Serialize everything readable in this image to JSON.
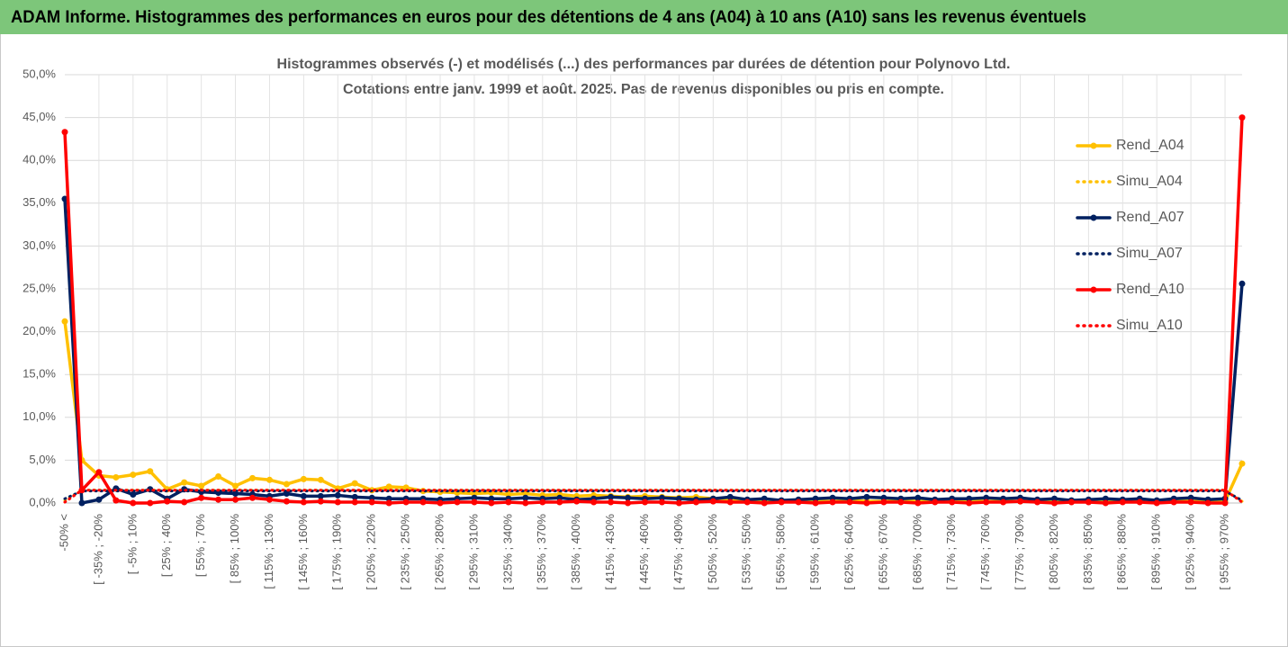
{
  "header": {
    "title": "ADAM Informe. Histogrammes des performances en euros pour des détentions de 4 ans (A04) à 10 ans (A10) sans les revenus éventuels"
  },
  "chart_data": {
    "type": "line",
    "title": "Histogrammes observés (-) et modélisés (...) des performances par durées de détention pour Polynovo Ltd.",
    "subtitle": "Cotations entre janv. 1999 et août. 2025. Pas de revenus disponibles ou pris en compte.",
    "categories": [
      "-50% <",
      null,
      "[ -35% ; -20%",
      null,
      "[ -5% ; 10%",
      null,
      "[ 25% ; 40%",
      null,
      "[ 55% ; 70%",
      null,
      "[ 85% ; 100%",
      null,
      "[ 115% ; 130%",
      null,
      "[ 145% ; 160%",
      null,
      "[ 175% ; 190%",
      null,
      "[ 205% ; 220%",
      null,
      "[ 235% ; 250%",
      null,
      "[ 265% ; 280%",
      null,
      "[ 295% ; 310%",
      null,
      "[ 325% ; 340%",
      null,
      "[ 355% ; 370%",
      null,
      "[ 385% ; 400%",
      null,
      "[ 415% ; 430%",
      null,
      "[ 445% ; 460%",
      null,
      "[ 475% ; 490%",
      null,
      "[ 505% ; 520%",
      null,
      "[ 535% ; 550%",
      null,
      "[ 565% ; 580%",
      null,
      "[ 595% ; 610%",
      null,
      "[ 625% ; 640%",
      null,
      "[ 655% ; 670%",
      null,
      "[ 685% ; 700%",
      null,
      "[ 715% ; 730%",
      null,
      "[ 745% ; 760%",
      null,
      "[ 775% ; 790%",
      null,
      "[ 805% ; 820%",
      null,
      "[ 835% ; 850%",
      null,
      "[ 865% ; 880%",
      null,
      "[ 895% ; 910%",
      null,
      "[ 925% ; 940%",
      null,
      "[ 955% ; 970%",
      null
    ],
    "series": [
      {
        "name": "Rend_A04",
        "color": "#ffc000",
        "line_style": "solid",
        "markers": true,
        "values": [
          21.2,
          5.0,
          3.2,
          3.0,
          3.3,
          3.7,
          1.6,
          2.4,
          2.0,
          3.1,
          2.0,
          2.9,
          2.7,
          2.2,
          2.8,
          2.7,
          1.7,
          2.3,
          1.5,
          1.9,
          1.8,
          1.4,
          1.3,
          1.2,
          1.1,
          1.2,
          1.0,
          1.1,
          0.9,
          1.0,
          0.8,
          0.9,
          0.8,
          0.7,
          0.8,
          0.7,
          0.6,
          0.7,
          0.5,
          0.4,
          0.3,
          0.3,
          0.2,
          0.3,
          0.2,
          0.2,
          0.3,
          0.2,
          0.2,
          0.3,
          0.2,
          0.2,
          0.2,
          0.3,
          0.2,
          0.2,
          0.2,
          0.3,
          0.2,
          0.2,
          0.2,
          0.2,
          0.3,
          0.2,
          0.2,
          0.2,
          0.3,
          0.2,
          0.2,
          4.6
        ]
      },
      {
        "name": "Simu_A04",
        "color": "#ffc000",
        "line_style": "dotted",
        "markers": false,
        "values": [
          0.3,
          1.5,
          1.5,
          1.5,
          1.5,
          1.5,
          1.5,
          1.5,
          1.5,
          1.5,
          1.5,
          1.5,
          1.5,
          1.5,
          1.5,
          1.5,
          1.5,
          1.5,
          1.5,
          1.5,
          1.5,
          1.5,
          1.5,
          1.5,
          1.5,
          1.5,
          1.5,
          1.5,
          1.5,
          1.5,
          1.5,
          1.5,
          1.5,
          1.5,
          1.5,
          1.5,
          1.5,
          1.5,
          1.5,
          1.5,
          1.5,
          1.5,
          1.5,
          1.5,
          1.5,
          1.5,
          1.5,
          1.5,
          1.5,
          1.5,
          1.5,
          1.5,
          1.5,
          1.5,
          1.5,
          1.5,
          1.5,
          1.5,
          1.5,
          1.5,
          1.5,
          1.5,
          1.5,
          1.5,
          1.5,
          1.5,
          1.5,
          1.5,
          1.5,
          0.2
        ]
      },
      {
        "name": "Rend_A07",
        "color": "#002060",
        "line_style": "solid",
        "markers": true,
        "values": [
          35.5,
          0.0,
          0.4,
          1.7,
          1.0,
          1.6,
          0.5,
          1.6,
          1.3,
          1.2,
          1.1,
          1.0,
          0.8,
          1.1,
          0.8,
          0.8,
          0.9,
          0.7,
          0.6,
          0.5,
          0.5,
          0.5,
          0.4,
          0.5,
          0.6,
          0.5,
          0.5,
          0.6,
          0.5,
          0.6,
          0.4,
          0.5,
          0.7,
          0.6,
          0.5,
          0.6,
          0.5,
          0.4,
          0.5,
          0.7,
          0.4,
          0.5,
          0.3,
          0.4,
          0.5,
          0.6,
          0.5,
          0.7,
          0.6,
          0.5,
          0.6,
          0.4,
          0.5,
          0.5,
          0.6,
          0.5,
          0.6,
          0.4,
          0.5,
          0.3,
          0.4,
          0.5,
          0.4,
          0.5,
          0.3,
          0.5,
          0.6,
          0.4,
          0.5,
          25.6
        ]
      },
      {
        "name": "Simu_A07",
        "color": "#002060",
        "line_style": "dotted",
        "markers": false,
        "values": [
          0.5,
          1.4,
          1.4,
          1.4,
          1.4,
          1.4,
          1.4,
          1.4,
          1.4,
          1.4,
          1.4,
          1.4,
          1.4,
          1.4,
          1.4,
          1.4,
          1.4,
          1.4,
          1.4,
          1.4,
          1.4,
          1.4,
          1.4,
          1.4,
          1.4,
          1.4,
          1.4,
          1.4,
          1.4,
          1.4,
          1.4,
          1.4,
          1.4,
          1.4,
          1.4,
          1.4,
          1.4,
          1.4,
          1.4,
          1.4,
          1.4,
          1.4,
          1.4,
          1.4,
          1.4,
          1.4,
          1.4,
          1.4,
          1.4,
          1.4,
          1.4,
          1.4,
          1.4,
          1.4,
          1.4,
          1.4,
          1.4,
          1.4,
          1.4,
          1.4,
          1.4,
          1.4,
          1.4,
          1.4,
          1.4,
          1.4,
          1.4,
          1.4,
          1.4,
          0.3
        ]
      },
      {
        "name": "Rend_A10",
        "color": "#ff0000",
        "line_style": "solid",
        "markers": true,
        "values": [
          43.3,
          1.5,
          3.6,
          0.3,
          0.0,
          0.0,
          0.2,
          0.1,
          0.6,
          0.4,
          0.4,
          0.6,
          0.4,
          0.2,
          0.1,
          0.2,
          0.1,
          0.1,
          0.1,
          0.0,
          0.1,
          0.1,
          0.0,
          0.1,
          0.1,
          0.0,
          0.1,
          0.0,
          0.1,
          0.1,
          0.2,
          0.1,
          0.1,
          0.0,
          0.1,
          0.1,
          0.0,
          0.1,
          0.2,
          0.1,
          0.1,
          0.0,
          0.1,
          0.1,
          0.0,
          0.1,
          0.1,
          0.0,
          0.1,
          0.1,
          0.0,
          0.1,
          0.1,
          0.0,
          0.1,
          0.1,
          0.2,
          0.1,
          0.0,
          0.1,
          0.1,
          0.0,
          0.1,
          0.1,
          0.0,
          0.1,
          0.1,
          0.0,
          0.0,
          45.0
        ]
      },
      {
        "name": "Simu_A10",
        "color": "#ff0000",
        "line_style": "dotted",
        "markers": false,
        "values": [
          0.1,
          1.5,
          1.5,
          1.5,
          1.5,
          1.5,
          1.5,
          1.5,
          1.5,
          1.5,
          1.5,
          1.5,
          1.5,
          1.5,
          1.5,
          1.5,
          1.5,
          1.5,
          1.5,
          1.5,
          1.5,
          1.5,
          1.5,
          1.5,
          1.5,
          1.5,
          1.5,
          1.5,
          1.5,
          1.5,
          1.5,
          1.5,
          1.5,
          1.5,
          1.5,
          1.5,
          1.5,
          1.5,
          1.5,
          1.5,
          1.5,
          1.5,
          1.5,
          1.5,
          1.5,
          1.5,
          1.5,
          1.5,
          1.5,
          1.5,
          1.5,
          1.5,
          1.5,
          1.5,
          1.5,
          1.5,
          1.5,
          1.5,
          1.5,
          1.5,
          1.5,
          1.5,
          1.5,
          1.5,
          1.5,
          1.5,
          1.5,
          1.5,
          1.5,
          0.1
        ]
      }
    ],
    "ylim": [
      0,
      50
    ],
    "yticks": [
      {
        "value": 0,
        "label": "0,0%"
      },
      {
        "value": 5,
        "label": "5,0%"
      },
      {
        "value": 10,
        "label": "10,0%"
      },
      {
        "value": 15,
        "label": "15,0%"
      },
      {
        "value": 20,
        "label": "20,0%"
      },
      {
        "value": 25,
        "label": "25,0%"
      },
      {
        "value": 30,
        "label": "30,0%"
      },
      {
        "value": 35,
        "label": "35,0%"
      },
      {
        "value": 40,
        "label": "40,0%"
      },
      {
        "value": 45,
        "label": "45,0%"
      },
      {
        "value": 50,
        "label": "50,0%"
      }
    ],
    "grid": true,
    "legend": "right"
  }
}
